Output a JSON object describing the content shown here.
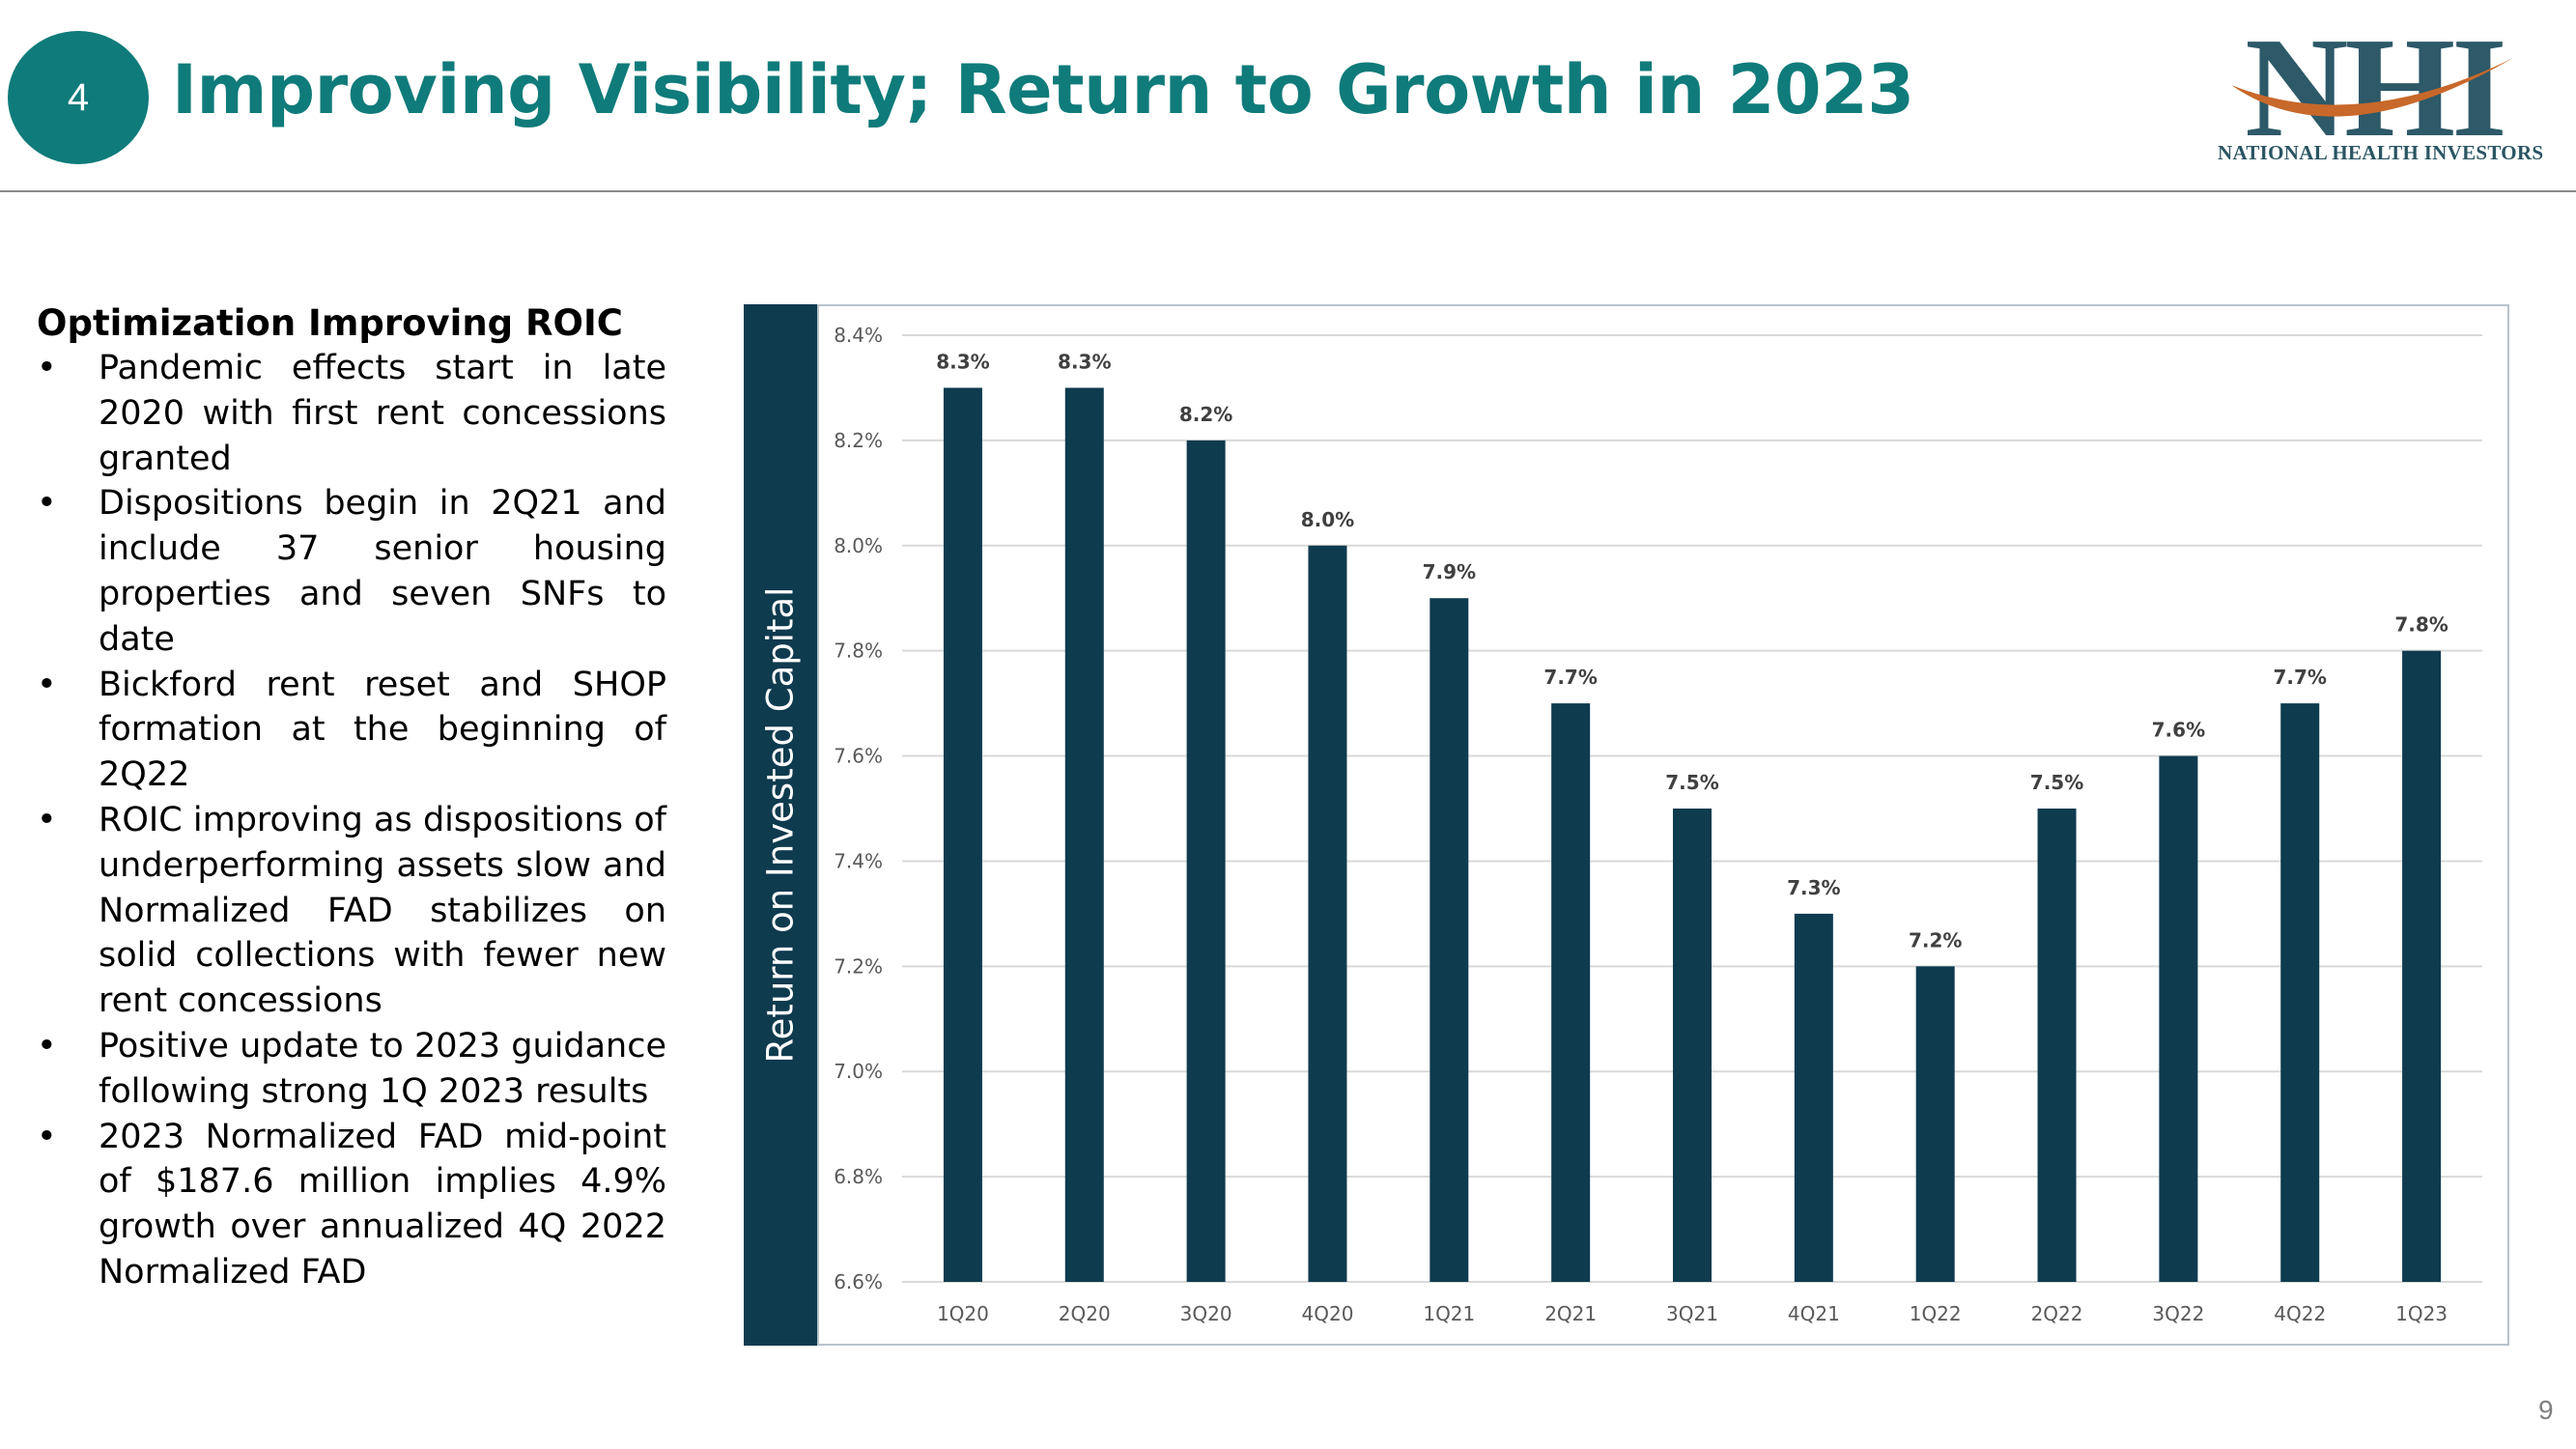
{
  "slide": {
    "number": "4",
    "title": "Improving Visibility; Return to Growth in 2023",
    "page_number": "9"
  },
  "logo": {
    "letters": "NHI",
    "tagline": "NATIONAL HEALTH INVESTORS"
  },
  "bullets": {
    "heading": "Optimization Improving ROIC",
    "items": [
      "Pandemic effects start in late 2020 with first rent concessions granted",
      "Dispositions begin in 2Q21 and include 37 senior housing properties and seven SNFs to date",
      "Bickford rent reset and SHOP formation at the beginning of 2Q22",
      "ROIC improving as dispositions of underperforming assets slow and Normalized FAD stabilizes on solid collections with fewer new rent concessions",
      "Positive update to 2023 guidance following strong 1Q 2023 results",
      "2023 Normalized FAD mid-point of $187.6 million implies 4.9% growth over annualized 4Q 2022 Normalized FAD"
    ]
  },
  "colors": {
    "accent": "#0f7b7a",
    "bar": "#0f3b4f",
    "grid": "#d9d9d9"
  },
  "chart_data": {
    "type": "bar",
    "title": "",
    "ylabel": "Return on Invested Capital",
    "xlabel": "",
    "categories": [
      "1Q20",
      "2Q20",
      "3Q20",
      "4Q20",
      "1Q21",
      "2Q21",
      "3Q21",
      "4Q21",
      "1Q22",
      "2Q22",
      "3Q22",
      "4Q22",
      "1Q23"
    ],
    "values": [
      8.3,
      8.3,
      8.2,
      8.0,
      7.9,
      7.7,
      7.5,
      7.3,
      7.2,
      7.5,
      7.6,
      7.7,
      7.8
    ],
    "data_labels": [
      "8.3%",
      "8.3%",
      "8.2%",
      "8.0%",
      "7.9%",
      "7.7%",
      "7.5%",
      "7.3%",
      "7.2%",
      "7.5%",
      "7.6%",
      "7.7%",
      "7.8%"
    ],
    "ylim": [
      6.6,
      8.4
    ],
    "yticks": [
      6.6,
      6.8,
      7.0,
      7.2,
      7.4,
      7.6,
      7.8,
      8.0,
      8.2,
      8.4
    ],
    "ytick_labels": [
      "6.6%",
      "6.8%",
      "7.0%",
      "7.2%",
      "7.4%",
      "7.6%",
      "7.8%",
      "8.0%",
      "8.2%",
      "8.4%"
    ],
    "grid": true,
    "legend": "none"
  }
}
